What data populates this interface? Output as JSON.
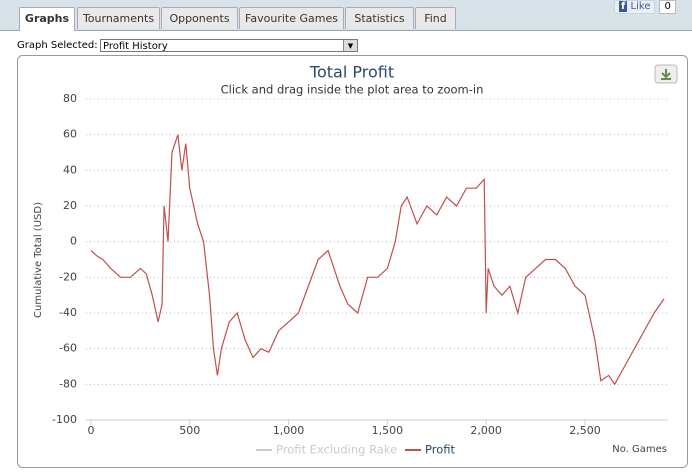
{
  "tabs": [
    "Graphs",
    "Tournaments",
    "Opponents",
    "Favourite Games",
    "Statistics",
    "Find"
  ],
  "like_button": {
    "label": "Like",
    "count": 0
  },
  "graph_selector": {
    "label": "Graph Selected:",
    "selected": "Profit History"
  },
  "chart_data": {
    "type": "line",
    "title": "Total Profit",
    "subtitle": "Click and drag inside the plot area to zoom-in",
    "y_label": "Cumulative Total (USD)",
    "x_label": "No. Games",
    "x": [
      0,
      30,
      60,
      100,
      150,
      200,
      250,
      280,
      310,
      340,
      360,
      370,
      390,
      410,
      440,
      460,
      480,
      500,
      520,
      540,
      570,
      600,
      620,
      640,
      660,
      700,
      740,
      780,
      820,
      860,
      900,
      950,
      1000,
      1050,
      1100,
      1150,
      1200,
      1230,
      1260,
      1300,
      1350,
      1400,
      1450,
      1500,
      1540,
      1570,
      1600,
      1650,
      1700,
      1750,
      1800,
      1850,
      1900,
      1950,
      1990,
      2000,
      2010,
      2040,
      2080,
      2120,
      2160,
      2200,
      2250,
      2300,
      2350,
      2400,
      2450,
      2500,
      2550,
      2580,
      2620,
      2650,
      2700,
      2750,
      2800,
      2850,
      2900
    ],
    "series": [
      {
        "name": "Profit Excluding Rake",
        "color": "#cccccc",
        "hidden": true
      },
      {
        "name": "Profit",
        "color": "#c0504d",
        "hidden": false,
        "values": [
          -5,
          -8,
          -10,
          -15,
          -20,
          -20,
          -15,
          -18,
          -30,
          -45,
          -35,
          20,
          0,
          50,
          60,
          40,
          55,
          30,
          20,
          10,
          0,
          -30,
          -60,
          -75,
          -60,
          -45,
          -40,
          -55,
          -65,
          -60,
          -62,
          -50,
          -45,
          -40,
          -25,
          -10,
          -5,
          -15,
          -25,
          -35,
          -40,
          -20,
          -20,
          -15,
          0,
          20,
          25,
          10,
          20,
          15,
          25,
          20,
          30,
          30,
          35,
          -40,
          -15,
          -25,
          -30,
          -25,
          -40,
          -20,
          -15,
          -10,
          -10,
          -15,
          -25,
          -30,
          -55,
          -78,
          -75,
          -80,
          -70,
          -60,
          -50,
          -40,
          -32
        ]
      }
    ],
    "xlim": [
      -25,
      2920
    ],
    "ylim": [
      -100,
      80
    ],
    "xticks": [
      0,
      500,
      {
        "value": 1000,
        "label": "1,000"
      },
      {
        "value": 1500,
        "label": "1,500"
      },
      {
        "value": 2000,
        "label": "2,000"
      },
      {
        "value": 2500,
        "label": "2,500"
      }
    ],
    "yticks": [
      -100,
      -80,
      -60,
      -40,
      -20,
      0,
      20,
      40,
      60,
      80
    ],
    "grid": true
  }
}
